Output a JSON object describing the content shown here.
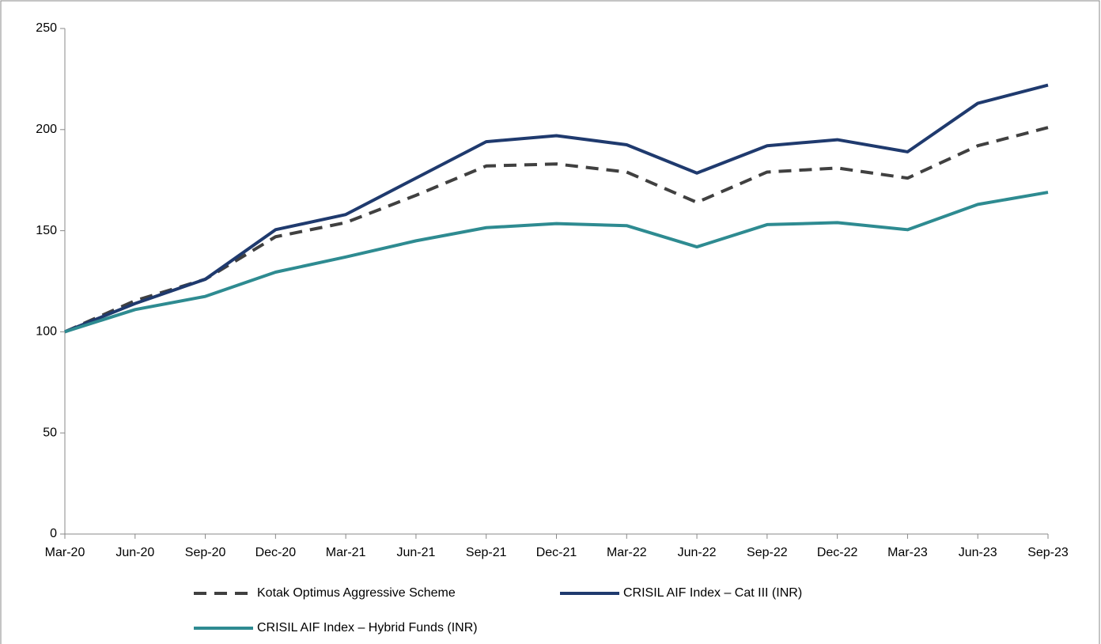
{
  "chart_data": {
    "type": "line",
    "categories": [
      "Mar-20",
      "Jun-20",
      "Sep-20",
      "Dec-20",
      "Mar-21",
      "Jun-21",
      "Sep-21",
      "Dec-21",
      "Mar-22",
      "Jun-22",
      "Sep-22",
      "Dec-22",
      "Mar-23",
      "Jun-23",
      "Sep-23"
    ],
    "series": [
      {
        "name": "Kotak Optimus Aggressive Scheme",
        "color": "#404040",
        "dashed": true,
        "values": [
          100,
          115.4,
          126,
          147,
          154,
          167.5,
          182,
          183,
          179,
          164,
          179,
          181,
          176,
          192,
          201
        ]
      },
      {
        "name": "CRISIL AIF Index – Cat III (INR)",
        "color": "#1f3a6e",
        "values": [
          100,
          114,
          126,
          150.5,
          158,
          176,
          194,
          197,
          192.5,
          178.5,
          192,
          195,
          189,
          213,
          222
        ]
      },
      {
        "name": "CRISIL AIF Index – Hybrid Funds (INR)",
        "color": "#2e8b91",
        "values": [
          100,
          111,
          117.5,
          129.5,
          137,
          145,
          151.5,
          153.5,
          152.5,
          142,
          153,
          154,
          150.5,
          163,
          169
        ]
      }
    ],
    "ylim": [
      0,
      250
    ],
    "yticks": [
      0,
      50,
      100,
      150,
      200,
      250
    ]
  }
}
